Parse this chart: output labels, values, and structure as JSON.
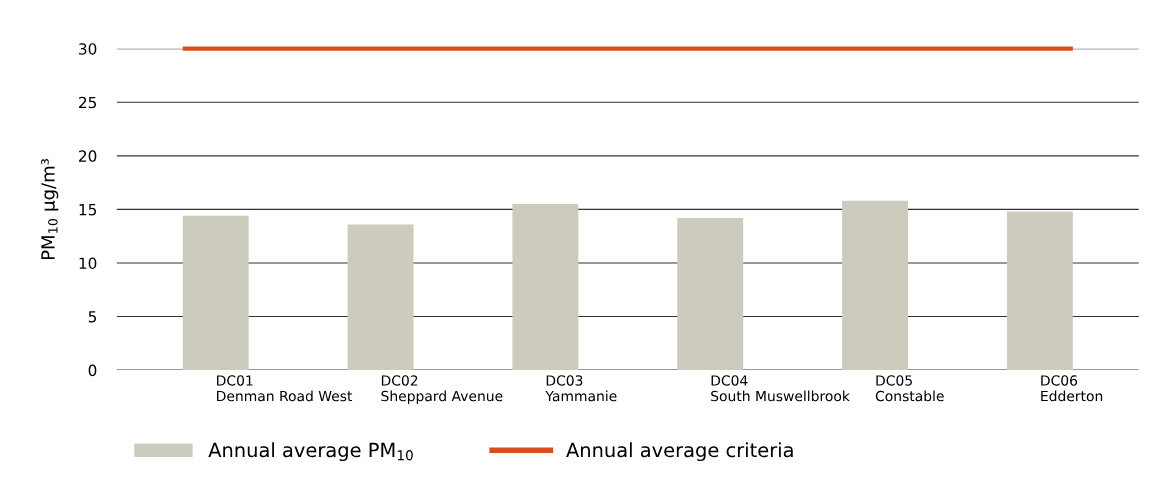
{
  "chart_data": {
    "type": "bar",
    "categories": [
      "DC01\nDenman Road West",
      "DC02\nSheppard Avenue",
      "DC03\nYammanie",
      "DC04\nSouth Muswellbrook",
      "DC05\nConstable",
      "DC06\nEdderton"
    ],
    "series": [
      {
        "name": "Annual average PM$_{10}$",
        "color": "#cccbbe",
        "values": [
          14.4,
          13.6,
          15.5,
          14.2,
          15.8,
          14.8
        ]
      }
    ],
    "ref_lines": [
      {
        "axis": "y",
        "value": 30,
        "label": "Annual average criteria",
        "color": "#d9501e",
        "line_style": "solid"
      }
    ],
    "ylabel": "PM$_{10}$ µg/m³",
    "ylim": [
      0,
      30
    ],
    "yticks": [
      0,
      5,
      10,
      15,
      20,
      25,
      30
    ],
    "grid": "y",
    "legend": "bottom left"
  }
}
